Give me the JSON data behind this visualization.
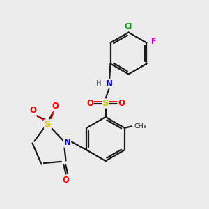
{
  "bg_color": "#ececec",
  "bond_color": "#1a1a1a",
  "bond_width": 1.6,
  "atom_colors": {
    "N": "#0000ff",
    "S": "#cccc00",
    "O": "#ff0000",
    "Cl": "#00aa00",
    "F": "#cc00cc",
    "H": "#607070",
    "C": "#1a1a1a",
    "CH3": "#1a1a1a"
  }
}
